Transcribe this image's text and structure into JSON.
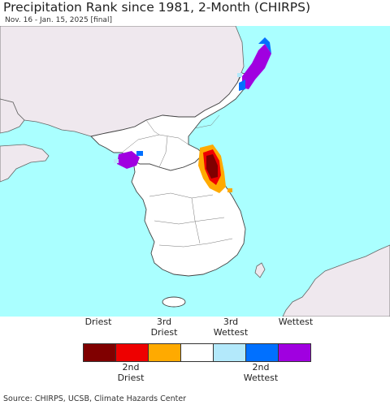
{
  "header": {
    "title": "Precipitation Rank since 1981, 2-Month (CHIRPS)",
    "subtitle": "Nov. 16 - Jan. 15, 2025 [final]"
  },
  "legend": {
    "top_labels": [
      {
        "line1": "",
        "line2": "Driest"
      },
      {
        "line1": "3rd",
        "line2": "Driest"
      },
      {
        "line1": "3rd",
        "line2": "Wettest"
      },
      {
        "line1": "",
        "line2": "Wettest"
      }
    ],
    "bottom_labels": [
      {
        "line1": "2nd",
        "line2": "Driest"
      },
      {
        "line1": "2nd",
        "line2": "Wettest"
      }
    ],
    "colors": [
      "#800000",
      "#ee0000",
      "#ffaa00",
      "#ffffff",
      "#b3e9fb",
      "#0070ff",
      "#a000e0"
    ]
  },
  "map_colors": {
    "ocean": "#aaffff",
    "land_in_domain": "#ffffff",
    "land_outside": "#efe8ee",
    "border": "#555555"
  },
  "footer": {
    "source": "Source: CHIRPS, UCSB, Climate Hazards Center"
  }
}
